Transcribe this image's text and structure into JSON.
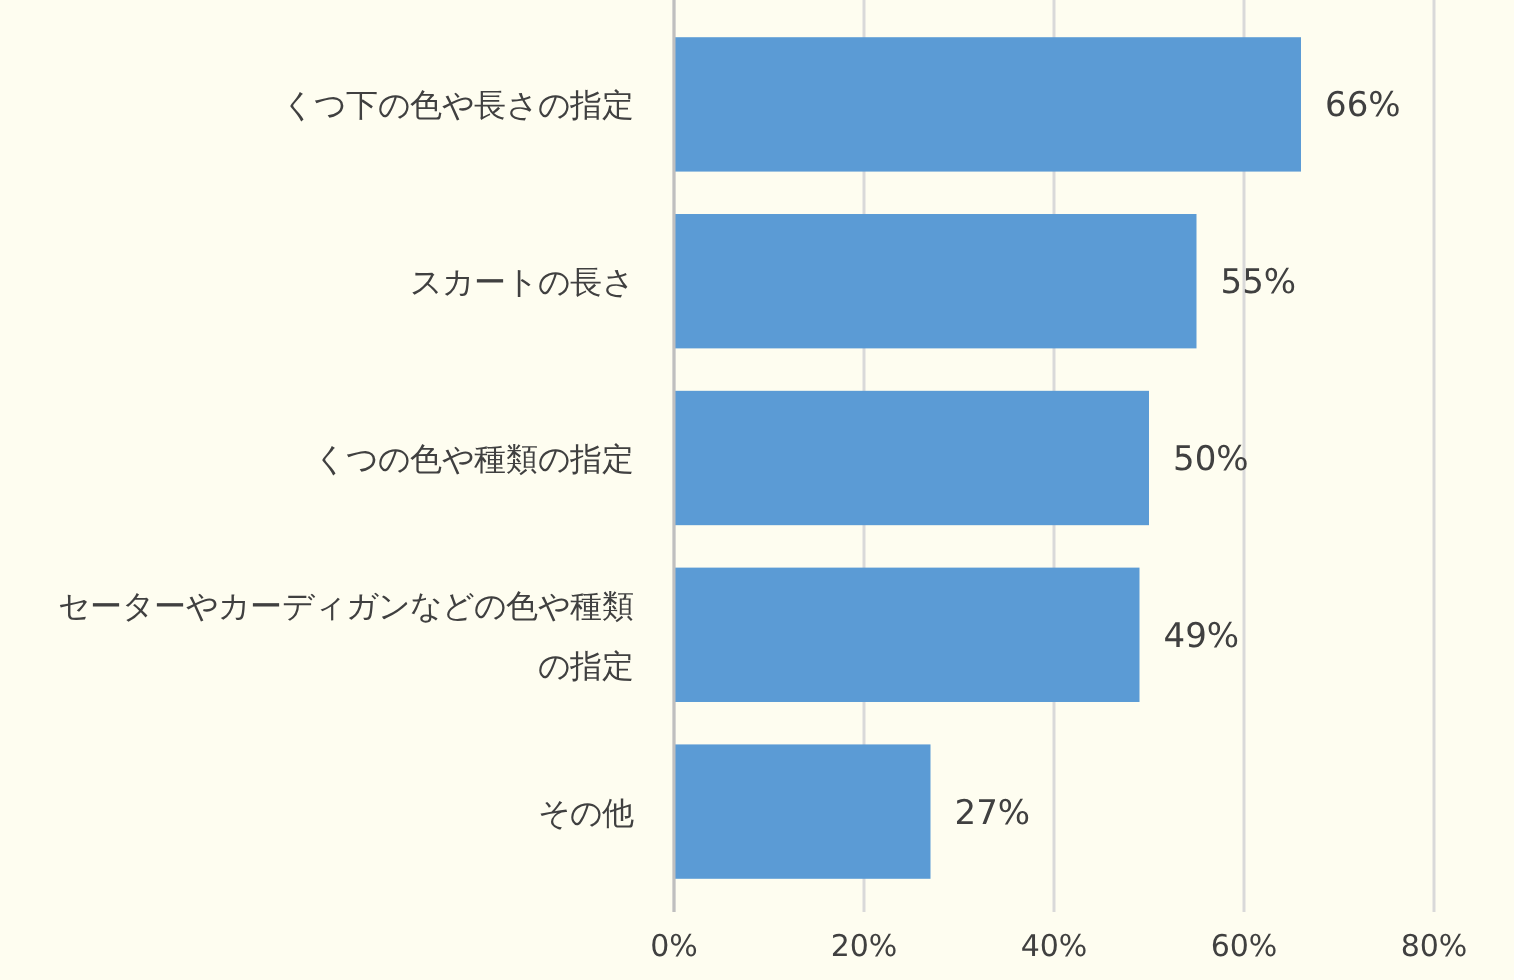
{
  "chart_data": {
    "type": "bar",
    "orientation": "horizontal",
    "categories": [
      "くつ下の色や長さの指定",
      "スカートの長さ",
      "くつの色や種類の指定",
      "セーターやカーディガンなどの色や種類の指定",
      "その他"
    ],
    "values": [
      66,
      55,
      50,
      49,
      27
    ],
    "value_labels": [
      "66%",
      "55%",
      "50%",
      "49%",
      "27%"
    ],
    "color": "#5b9bd5",
    "xlim": [
      0,
      80
    ],
    "xticks": [
      {
        "value": 0,
        "label": "0%"
      },
      {
        "value": 20,
        "label": "20%"
      },
      {
        "value": 40,
        "label": "40%"
      },
      {
        "value": 60,
        "label": "60%"
      },
      {
        "value": 80,
        "label": "80%"
      }
    ],
    "grid": "x"
  }
}
